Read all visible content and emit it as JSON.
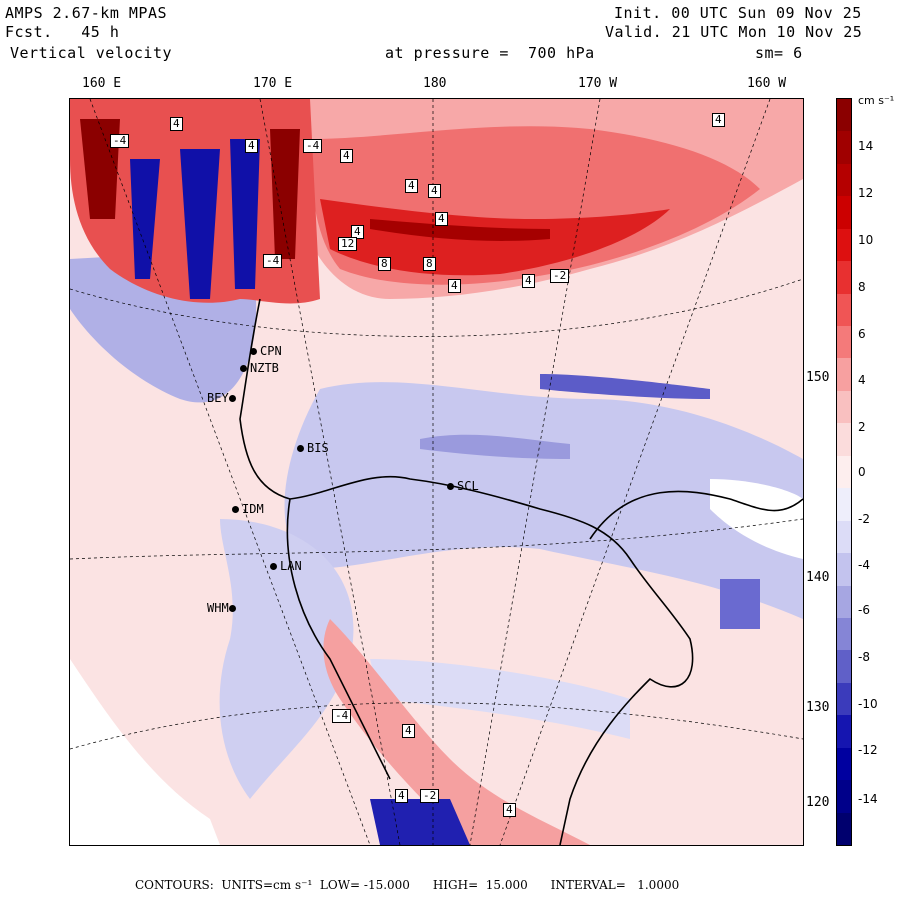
{
  "header": {
    "model": "AMPS 2.67-km MPAS",
    "forecast_label": "Fcst.",
    "forecast_hours": "45 h",
    "field": "Vertical velocity",
    "init_label": "Init.",
    "init_time": "00 UTC Sun 09 Nov 25",
    "valid_label": "Valid.",
    "valid_time": "21 UTC Mon 10 Nov 25",
    "pressure_label": "at pressure =",
    "pressure_value": "700 hPa",
    "smoothing": "sm= 6"
  },
  "longitude_labels": [
    "160 E",
    "170 E",
    "180",
    "170 W",
    "160 W"
  ],
  "latitude_labels": [
    "150 W",
    "140 W",
    "130 W",
    "120 W"
  ],
  "stations": [
    {
      "code": "CPN"
    },
    {
      "code": "NZTB"
    },
    {
      "code": "BEY"
    },
    {
      "code": "BIS"
    },
    {
      "code": "SCL"
    },
    {
      "code": "IDM"
    },
    {
      "code": "LAN"
    },
    {
      "code": "WHM"
    }
  ],
  "colorbar": {
    "unit": "cm s⁻¹",
    "ticks": [
      "14",
      "12",
      "10",
      "8",
      "6",
      "4",
      "2",
      "0",
      "-2",
      "-4",
      "-6",
      "-8",
      "-10",
      "-12",
      "-14"
    ],
    "colors": [
      "#8b0000",
      "#a00000",
      "#b50000",
      "#cc0000",
      "#dd1010",
      "#e83030",
      "#f05555",
      "#f47a7a",
      "#f7a0a0",
      "#f9c0c0",
      "#fbdcdc",
      "#fdeeee",
      "#eeeefb",
      "#dcdcf7",
      "#c3c3ee",
      "#a6a6e2",
      "#8585d6",
      "#6060c8",
      "#3b3bbb",
      "#1515b0",
      "#0000a0",
      "#00008a",
      "#00006e"
    ]
  },
  "footer": {
    "text": "CONTOURS:  UNITS=cm s⁻¹  LOW= -15.000      HIGH=  15.000      INTERVAL=   1.0000"
  },
  "contour_labels": [
    "4",
    "4",
    "4",
    "4",
    "4",
    "4",
    "4",
    "12",
    "8",
    "8",
    "4",
    "4",
    "4",
    "-4",
    "-4",
    "4",
    "4",
    "-2",
    "4",
    "-2",
    "-4",
    "-4"
  ]
}
